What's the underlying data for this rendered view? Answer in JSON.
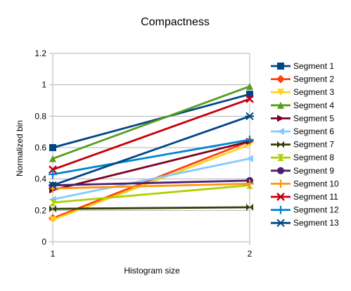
{
  "chart_data": {
    "type": "line",
    "title": "Compactness",
    "xlabel": "Histogram size",
    "ylabel": "Normalized bin",
    "x": [
      1,
      2
    ],
    "xticks": [
      "1",
      "2"
    ],
    "ylim": [
      0,
      1.2
    ],
    "yticks": [
      "0",
      "0.2",
      "0.4",
      "0.6",
      "0.8",
      "1",
      "1.2"
    ],
    "grid": true,
    "legend": "right",
    "series": [
      {
        "name": "Segment 1",
        "values": [
          0.6,
          0.94
        ],
        "color": "#004586",
        "marker": "square"
      },
      {
        "name": "Segment 2",
        "values": [
          0.15,
          0.64
        ],
        "color": "#ff420e",
        "marker": "diamond"
      },
      {
        "name": "Segment 3",
        "values": [
          0.14,
          0.62
        ],
        "color": "#ffd320",
        "marker": "triangle-down"
      },
      {
        "name": "Segment 4",
        "values": [
          0.53,
          0.99
        ],
        "color": "#579d1c",
        "marker": "triangle-up"
      },
      {
        "name": "Segment 5",
        "values": [
          0.33,
          0.64
        ],
        "color": "#7e0021",
        "marker": "triangle-right"
      },
      {
        "name": "Segment 6",
        "values": [
          0.27,
          0.53
        ],
        "color": "#83caff",
        "marker": "triangle-left"
      },
      {
        "name": "Segment 7",
        "values": [
          0.21,
          0.22
        ],
        "color": "#314004",
        "marker": "bowtie"
      },
      {
        "name": "Segment 8",
        "values": [
          0.25,
          0.36
        ],
        "color": "#aecf00",
        "marker": "hourglass"
      },
      {
        "name": "Segment 9",
        "values": [
          0.36,
          0.39
        ],
        "color": "#4b1f6f",
        "marker": "circle"
      },
      {
        "name": "Segment 10",
        "values": [
          0.34,
          0.37
        ],
        "color": "#ff950e",
        "marker": "plus"
      },
      {
        "name": "Segment 11",
        "values": [
          0.46,
          0.91
        ],
        "color": "#c5000b",
        "marker": "x"
      },
      {
        "name": "Segment 12",
        "values": [
          0.43,
          0.65
        ],
        "color": "#0084d1",
        "marker": "plus"
      },
      {
        "name": "Segment 13",
        "values": [
          0.36,
          0.8
        ],
        "color": "#004586",
        "marker": "asterisk"
      }
    ]
  }
}
